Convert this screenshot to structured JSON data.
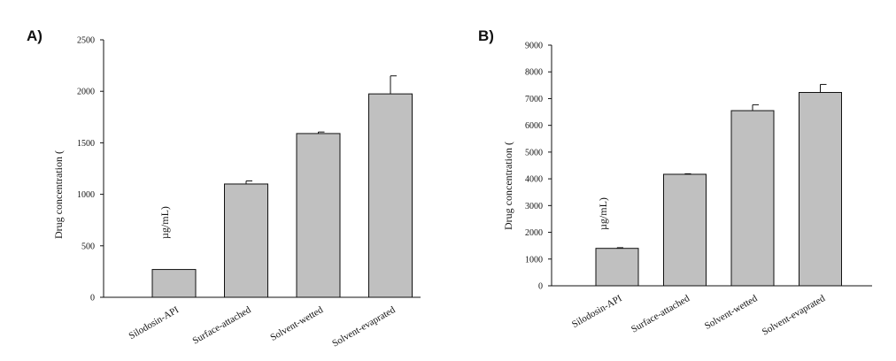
{
  "chart_data": [
    {
      "type": "bar",
      "panel_label": "A)",
      "categories": [
        "Silodosin-API",
        "Surface-attached",
        "Solvent-wetted",
        "Solvent-evaprated"
      ],
      "values": [
        270,
        1100,
        1590,
        1975
      ],
      "errors": [
        0,
        30,
        15,
        175
      ],
      "ylabel": "Drug concentration (",
      "yunit_fragment": "µg/mL)",
      "ylim": [
        0,
        2500
      ],
      "yticks": [
        "0",
        "500",
        "1000",
        "1500",
        "2000",
        "2500"
      ],
      "bar_color": "#c0c0c0"
    },
    {
      "type": "bar",
      "panel_label": "B)",
      "categories": [
        "Silodosin-API",
        "Surface-attached",
        "Solvent-wetted",
        "Solvent-evaprated"
      ],
      "values": [
        1400,
        4170,
        6550,
        7230
      ],
      "errors": [
        25,
        20,
        220,
        300
      ],
      "ylabel": "Drug concentration (",
      "yunit_fragment": "µg/mL)",
      "ylim": [
        0,
        9000
      ],
      "yticks": [
        "0",
        "1000",
        "2000",
        "3000",
        "4000",
        "5000",
        "6000",
        "7000",
        "8000",
        "9000"
      ],
      "bar_color": "#c0c0c0"
    }
  ]
}
